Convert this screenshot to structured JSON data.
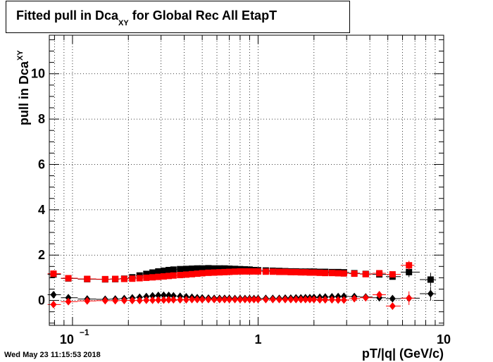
{
  "title": {
    "main": "Fitted pull in Dca",
    "sub": "XY",
    "rest": " for Global Rec All EtapT"
  },
  "ylabel": {
    "main": "pull in Dca",
    "sub": "XY"
  },
  "xlabel": "pT/|q| (GeV/c)",
  "timestamp": "Wed May 23 11:15:53 2018",
  "chart_data": {
    "type": "scatter",
    "x_scale": "log",
    "xlim": [
      0.075,
      10
    ],
    "ylim": [
      -1.1,
      11.7
    ],
    "x_ticks": [
      {
        "value": 0.1,
        "label": "10",
        "exp": "−1"
      },
      {
        "value": 1,
        "label": "1",
        "exp": ""
      },
      {
        "value": 10,
        "label": "10",
        "exp": ""
      }
    ],
    "y_ticks": [
      0,
      2,
      4,
      6,
      8,
      10
    ],
    "grid": true,
    "colors": {
      "black": "#000000",
      "red": "#ff0000"
    },
    "series": [
      {
        "marker": "square",
        "color": "#000000",
        "x": [
          0.079,
          0.095,
          0.12,
          0.15,
          0.17,
          0.19,
          0.21,
          0.23,
          0.25,
          0.27,
          0.29,
          0.31,
          0.33,
          0.35,
          0.38,
          0.41,
          0.44,
          0.47,
          0.5,
          0.54,
          0.58,
          0.62,
          0.66,
          0.7,
          0.75,
          0.8,
          0.85,
          0.9,
          0.95,
          1.0,
          1.1,
          1.2,
          1.3,
          1.4,
          1.5,
          1.6,
          1.7,
          1.8,
          1.9,
          2.0,
          2.15,
          2.3,
          2.5,
          2.7,
          2.9,
          3.3,
          3.8,
          4.5,
          5.3,
          6.5,
          8.5
        ],
        "y": [
          1.15,
          0.97,
          0.94,
          0.93,
          0.94,
          0.96,
          1.02,
          1.1,
          1.17,
          1.23,
          1.28,
          1.31,
          1.34,
          1.36,
          1.38,
          1.39,
          1.4,
          1.41,
          1.41,
          1.42,
          1.41,
          1.41,
          1.41,
          1.4,
          1.39,
          1.38,
          1.37,
          1.36,
          1.34,
          1.33,
          1.32,
          1.31,
          1.3,
          1.29,
          1.28,
          1.28,
          1.27,
          1.27,
          1.27,
          1.27,
          1.26,
          1.26,
          1.25,
          1.25,
          1.24,
          1.2,
          1.17,
          1.15,
          1.05,
          1.25,
          0.92
        ],
        "err": [
          0.15,
          0.08,
          0.05,
          0.04,
          0.04,
          0.04,
          0.04,
          0.04,
          0.04,
          0.04,
          0.04,
          0.04,
          0.04,
          0.04,
          0.04,
          0.04,
          0.04,
          0.04,
          0.04,
          0.04,
          0.04,
          0.04,
          0.04,
          0.04,
          0.04,
          0.04,
          0.04,
          0.04,
          0.04,
          0.04,
          0.04,
          0.04,
          0.04,
          0.04,
          0.04,
          0.04,
          0.04,
          0.04,
          0.04,
          0.04,
          0.05,
          0.05,
          0.05,
          0.06,
          0.06,
          0.07,
          0.08,
          0.1,
          0.12,
          0.22,
          0.3
        ]
      },
      {
        "marker": "square",
        "color": "#ff0000",
        "x": [
          0.079,
          0.095,
          0.12,
          0.15,
          0.17,
          0.19,
          0.21,
          0.23,
          0.25,
          0.27,
          0.29,
          0.31,
          0.33,
          0.35,
          0.38,
          0.41,
          0.44,
          0.47,
          0.5,
          0.54,
          0.58,
          0.62,
          0.66,
          0.7,
          0.75,
          0.8,
          0.85,
          0.9,
          0.95,
          1.0,
          1.1,
          1.2,
          1.3,
          1.4,
          1.5,
          1.6,
          1.7,
          1.8,
          1.9,
          2.0,
          2.15,
          2.3,
          2.5,
          2.7,
          2.9,
          3.3,
          3.8,
          4.5,
          5.3,
          6.5
        ],
        "y": [
          1.18,
          0.98,
          0.95,
          0.94,
          0.95,
          0.95,
          0.96,
          0.98,
          1.0,
          1.02,
          1.04,
          1.06,
          1.08,
          1.1,
          1.12,
          1.14,
          1.16,
          1.18,
          1.2,
          1.22,
          1.23,
          1.24,
          1.25,
          1.26,
          1.27,
          1.28,
          1.28,
          1.28,
          1.28,
          1.28,
          1.27,
          1.27,
          1.26,
          1.26,
          1.25,
          1.25,
          1.24,
          1.24,
          1.23,
          1.23,
          1.22,
          1.21,
          1.21,
          1.2,
          1.19,
          1.18,
          1.16,
          1.2,
          1.15,
          1.55
        ],
        "err": [
          0.15,
          0.08,
          0.05,
          0.04,
          0.04,
          0.04,
          0.04,
          0.04,
          0.04,
          0.04,
          0.04,
          0.04,
          0.04,
          0.04,
          0.04,
          0.04,
          0.04,
          0.04,
          0.04,
          0.04,
          0.04,
          0.04,
          0.04,
          0.04,
          0.04,
          0.04,
          0.04,
          0.04,
          0.04,
          0.04,
          0.04,
          0.04,
          0.04,
          0.04,
          0.04,
          0.04,
          0.04,
          0.04,
          0.04,
          0.04,
          0.05,
          0.05,
          0.05,
          0.06,
          0.06,
          0.07,
          0.08,
          0.1,
          0.12,
          0.2
        ]
      },
      {
        "marker": "diamond",
        "color": "#000000",
        "x": [
          0.079,
          0.095,
          0.12,
          0.15,
          0.17,
          0.19,
          0.21,
          0.23,
          0.25,
          0.27,
          0.29,
          0.31,
          0.33,
          0.35,
          0.38,
          0.41,
          0.44,
          0.47,
          0.5,
          0.54,
          0.58,
          0.62,
          0.66,
          0.7,
          0.75,
          0.8,
          0.85,
          0.9,
          0.95,
          1.0,
          1.1,
          1.2,
          1.3,
          1.4,
          1.5,
          1.6,
          1.7,
          1.8,
          1.9,
          2.0,
          2.15,
          2.3,
          2.5,
          2.7,
          2.9,
          3.3,
          3.8,
          4.5,
          5.3,
          6.5,
          8.5
        ],
        "y": [
          0.25,
          0.12,
          0.06,
          0.05,
          0.06,
          0.08,
          0.11,
          0.14,
          0.17,
          0.2,
          0.22,
          0.23,
          0.22,
          0.2,
          0.18,
          0.16,
          0.14,
          0.12,
          0.11,
          0.1,
          0.09,
          0.09,
          0.09,
          0.09,
          0.08,
          0.08,
          0.08,
          0.08,
          0.08,
          0.08,
          0.09,
          0.09,
          0.09,
          0.1,
          0.1,
          0.11,
          0.11,
          0.12,
          0.12,
          0.13,
          0.14,
          0.15,
          0.16,
          0.17,
          0.18,
          0.17,
          0.15,
          0.12,
          0.08,
          0.1,
          0.3
        ],
        "err": [
          0.12,
          0.06,
          0.04,
          0.03,
          0.03,
          0.03,
          0.03,
          0.03,
          0.03,
          0.03,
          0.03,
          0.03,
          0.03,
          0.03,
          0.03,
          0.03,
          0.03,
          0.03,
          0.03,
          0.03,
          0.03,
          0.03,
          0.03,
          0.03,
          0.03,
          0.03,
          0.03,
          0.03,
          0.03,
          0.03,
          0.03,
          0.03,
          0.03,
          0.03,
          0.03,
          0.03,
          0.03,
          0.03,
          0.03,
          0.03,
          0.04,
          0.04,
          0.04,
          0.05,
          0.05,
          0.06,
          0.07,
          0.09,
          0.1,
          0.15,
          0.3
        ]
      },
      {
        "marker": "diamond",
        "color": "#ff0000",
        "x": [
          0.079,
          0.095,
          0.12,
          0.15,
          0.17,
          0.19,
          0.21,
          0.23,
          0.25,
          0.27,
          0.29,
          0.31,
          0.33,
          0.35,
          0.38,
          0.41,
          0.44,
          0.47,
          0.5,
          0.54,
          0.58,
          0.62,
          0.66,
          0.7,
          0.75,
          0.8,
          0.85,
          0.9,
          0.95,
          1.0,
          1.1,
          1.2,
          1.3,
          1.4,
          1.5,
          1.6,
          1.7,
          1.8,
          1.9,
          2.0,
          2.15,
          2.3,
          2.5,
          2.7,
          2.9,
          3.3,
          3.8,
          4.5,
          5.3,
          6.5
        ],
        "y": [
          -0.18,
          -0.05,
          -0.02,
          -0.01,
          -0.01,
          0.0,
          0.0,
          0.0,
          0.01,
          0.01,
          0.02,
          0.02,
          0.03,
          0.03,
          0.03,
          0.03,
          0.04,
          0.04,
          0.04,
          0.04,
          0.04,
          0.04,
          0.04,
          0.04,
          0.04,
          0.04,
          0.04,
          0.04,
          0.04,
          0.04,
          0.04,
          0.04,
          0.04,
          0.04,
          0.04,
          0.04,
          0.04,
          0.04,
          0.04,
          0.04,
          0.03,
          0.03,
          0.03,
          0.02,
          0.02,
          0.08,
          0.12,
          0.25,
          -0.25,
          0.1
        ],
        "err": [
          0.12,
          0.06,
          0.04,
          0.03,
          0.03,
          0.03,
          0.03,
          0.03,
          0.03,
          0.03,
          0.03,
          0.03,
          0.03,
          0.03,
          0.03,
          0.03,
          0.03,
          0.03,
          0.03,
          0.03,
          0.03,
          0.03,
          0.03,
          0.03,
          0.03,
          0.03,
          0.03,
          0.03,
          0.03,
          0.03,
          0.03,
          0.03,
          0.03,
          0.03,
          0.03,
          0.03,
          0.03,
          0.03,
          0.03,
          0.03,
          0.04,
          0.04,
          0.04,
          0.05,
          0.05,
          0.06,
          0.07,
          0.09,
          0.1,
          0.3
        ]
      }
    ]
  }
}
